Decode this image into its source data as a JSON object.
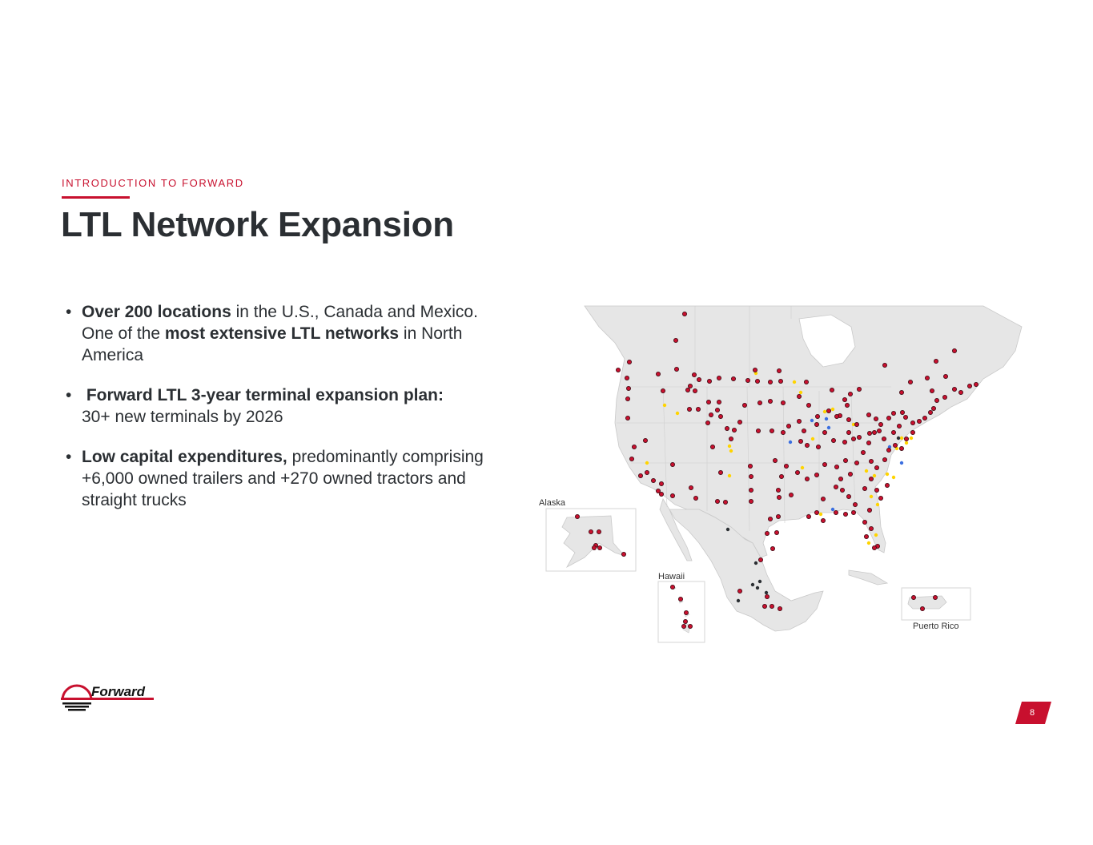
{
  "header": {
    "kicker": "INTRODUCTION TO FORWARD",
    "title": "LTL Network Expansion"
  },
  "bullets": [
    {
      "parts": [
        {
          "text": "Over 200 locations",
          "bold": true
        },
        {
          "text": " in the U.S., Canada and Mexico. One of the ",
          "bold": false
        },
        {
          "text": "most extensive LTL networks",
          "bold": true
        },
        {
          "text": " in North America",
          "bold": false
        }
      ]
    },
    {
      "parts": [
        {
          "text": " Forward LTL 3-year terminal expansion plan:",
          "bold": true
        },
        {
          "text": " 30+ new terminals by 2026",
          "bold": false
        }
      ]
    },
    {
      "parts": [
        {
          "text": "Low capital expenditures,",
          "bold": true
        },
        {
          "text": " predominantly comprising +6,000 owned trailers and +270 owned tractors and straight trucks",
          "bold": false
        }
      ]
    }
  ],
  "map": {
    "inset_labels": {
      "alaska": "Alaska",
      "hawaii": "Hawaii",
      "puerto_rico": "Puerto Rico"
    },
    "marker_colors": {
      "existing": "#c8102e",
      "planned": "#ffd400",
      "partner": "#3b6fe0",
      "other": "#2b2f33"
    }
  },
  "footer": {
    "logo_text": "Forward",
    "brand_color": "#c8102e",
    "page_number": "8"
  }
}
